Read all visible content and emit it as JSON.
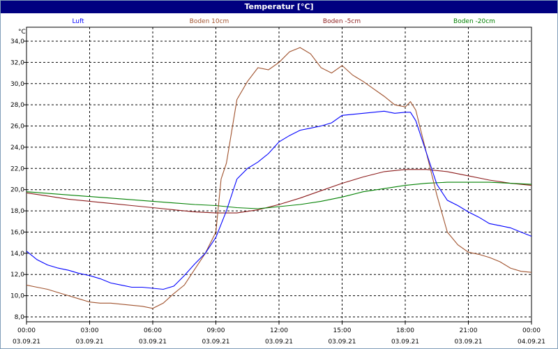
{
  "window": {
    "title": "Temperatur [°C]"
  },
  "chart_data": {
    "type": "line",
    "title": "Temperatur [°C]",
    "ylabel": "°C",
    "xlabel": "",
    "ylim": [
      8.0,
      35.0
    ],
    "y_ticks": [
      "8,0",
      "10,0",
      "12,0",
      "14,0",
      "16,0",
      "18,0",
      "20,0",
      "22,0",
      "24,0",
      "26,0",
      "28,0",
      "30,0",
      "32,0",
      "34,0"
    ],
    "x_hours": [
      0,
      3,
      6,
      9,
      12,
      15,
      18,
      21,
      24
    ],
    "x_tick_times": [
      "00:00",
      "03:00",
      "06:00",
      "09:00",
      "12:00",
      "15:00",
      "18:00",
      "21:00",
      "00:00"
    ],
    "x_tick_dates": [
      "03.09.21",
      "03.09.21",
      "03.09.21",
      "03.09.21",
      "03.09.21",
      "03.09.21",
      "03.09.21",
      "03.09.21",
      "04.09.21"
    ],
    "grid": true,
    "legend_position": "top",
    "series": [
      {
        "name": "Luft",
        "color": "#0000ff",
        "x": [
          0,
          0.5,
          1,
          1.5,
          2,
          2.5,
          3,
          3.5,
          4,
          4.5,
          5,
          5.5,
          6,
          6.5,
          7,
          7.5,
          8,
          8.5,
          9,
          9.5,
          10,
          10.5,
          11,
          11.5,
          12,
          12.5,
          13,
          13.5,
          14,
          14.5,
          15,
          15.5,
          16,
          16.5,
          17,
          17.5,
          18,
          18.25,
          18.5,
          19,
          19.5,
          20,
          20.5,
          21,
          21.5,
          22,
          22.5,
          23,
          23.5,
          24
        ],
        "y": [
          14.2,
          13.4,
          12.9,
          12.6,
          12.4,
          12.1,
          11.9,
          11.6,
          11.2,
          11.0,
          10.8,
          10.8,
          10.7,
          10.6,
          10.9,
          11.9,
          13.0,
          14.0,
          15.5,
          18.0,
          21.0,
          22.0,
          22.6,
          23.4,
          24.5,
          25.1,
          25.6,
          25.8,
          26.0,
          26.3,
          27.0,
          27.1,
          27.2,
          27.3,
          27.4,
          27.2,
          27.3,
          27.3,
          26.5,
          23.5,
          20.5,
          19.0,
          18.5,
          17.9,
          17.4,
          16.8,
          16.6,
          16.4,
          16.0,
          15.6
        ]
      },
      {
        "name": "Boden 10cm",
        "color": "#a0522d",
        "x": [
          0,
          0.5,
          1,
          1.5,
          2,
          2.5,
          3,
          3.5,
          4,
          4.5,
          5,
          5.5,
          6,
          6.5,
          7,
          7.5,
          8,
          8.5,
          9,
          9.25,
          9.5,
          10,
          10.5,
          11,
          11.5,
          12,
          12.5,
          13,
          13.5,
          14,
          14.5,
          15,
          15.5,
          16,
          16.5,
          17,
          17.5,
          18,
          18.25,
          18.5,
          19,
          19.5,
          20,
          20.5,
          21,
          21.5,
          22,
          22.5,
          23,
          23.5,
          24
        ],
        "y": [
          11.0,
          10.8,
          10.6,
          10.3,
          10.0,
          9.7,
          9.4,
          9.3,
          9.3,
          9.2,
          9.1,
          9.0,
          8.8,
          9.3,
          10.2,
          11.0,
          12.5,
          14.0,
          16.0,
          21.0,
          22.5,
          28.5,
          30.2,
          31.5,
          31.3,
          32.0,
          33.0,
          33.4,
          32.8,
          31.5,
          31.0,
          31.7,
          30.8,
          30.2,
          29.5,
          28.8,
          28.0,
          27.8,
          28.3,
          27.5,
          23.5,
          19.5,
          16.0,
          14.8,
          14.1,
          13.9,
          13.6,
          13.2,
          12.6,
          12.3,
          12.2
        ]
      },
      {
        "name": "Boden -5cm",
        "color": "#8b1a1a",
        "x": [
          0,
          1,
          2,
          3,
          4,
          5,
          6,
          7,
          8,
          9,
          10,
          11,
          12,
          13,
          14,
          15,
          16,
          17,
          18,
          19,
          20,
          21,
          22,
          23,
          24
        ],
        "y": [
          19.7,
          19.4,
          19.1,
          18.9,
          18.7,
          18.5,
          18.3,
          18.1,
          17.9,
          17.8,
          17.8,
          18.1,
          18.6,
          19.2,
          19.9,
          20.6,
          21.2,
          21.7,
          21.9,
          21.9,
          21.7,
          21.3,
          20.9,
          20.6,
          20.4
        ]
      },
      {
        "name": "Boden -20cm",
        "color": "#008000",
        "x": [
          0,
          2,
          4,
          6,
          8,
          9,
          10,
          11,
          12,
          13,
          14,
          15,
          16,
          17,
          18,
          19,
          20,
          21,
          22,
          23,
          24
        ],
        "y": [
          19.8,
          19.5,
          19.2,
          18.9,
          18.6,
          18.5,
          18.3,
          18.2,
          18.4,
          18.6,
          18.9,
          19.3,
          19.8,
          20.1,
          20.4,
          20.6,
          20.7,
          20.7,
          20.7,
          20.6,
          20.5
        ]
      }
    ]
  }
}
